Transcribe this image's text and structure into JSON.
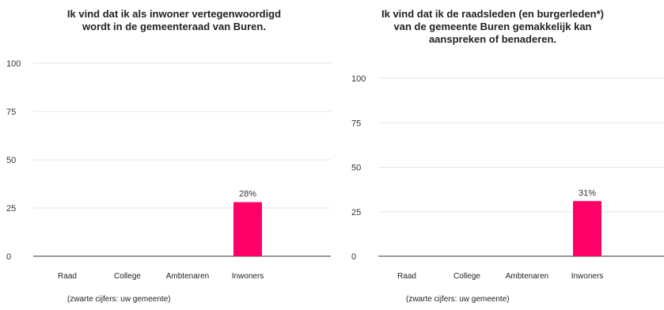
{
  "chart_data": [
    {
      "type": "bar",
      "title": "Ik vind dat ik als inwoner vertegenwoordigd\nwordt in de gemeenteraad van Buren.",
      "categories": [
        "Raad",
        "College",
        "Ambtenaren",
        "Inwoners"
      ],
      "values": [
        null,
        null,
        null,
        28
      ],
      "data_labels": [
        "",
        "",
        "",
        "28%"
      ],
      "ylim": [
        0,
        100
      ],
      "yticks": [
        "0",
        "25",
        "50",
        "75",
        "100"
      ],
      "xlabel": "",
      "ylabel": "",
      "grid": true,
      "footnote": "(zwarte cijfers: uw gemeente)"
    },
    {
      "type": "bar",
      "title": "Ik vind dat ik de raadsleden (en burgerleden*)\nvan de gemeente Buren gemakkelijk kan\naanspreken of benaderen.",
      "categories": [
        "Raad",
        "College",
        "Ambtenaren",
        "Inwoners"
      ],
      "values": [
        null,
        null,
        null,
        31
      ],
      "data_labels": [
        "",
        "",
        "",
        "31%"
      ],
      "ylim": [
        0,
        100
      ],
      "yticks": [
        "0",
        "25",
        "50",
        "75",
        "100"
      ],
      "xlabel": "",
      "ylabel": "",
      "grid": true,
      "footnote": "(zwarte cijfers: uw gemeente)"
    }
  ],
  "colors": {
    "bar": "#ff0066",
    "grid": "#e6e6e6",
    "axis": "#333333"
  }
}
